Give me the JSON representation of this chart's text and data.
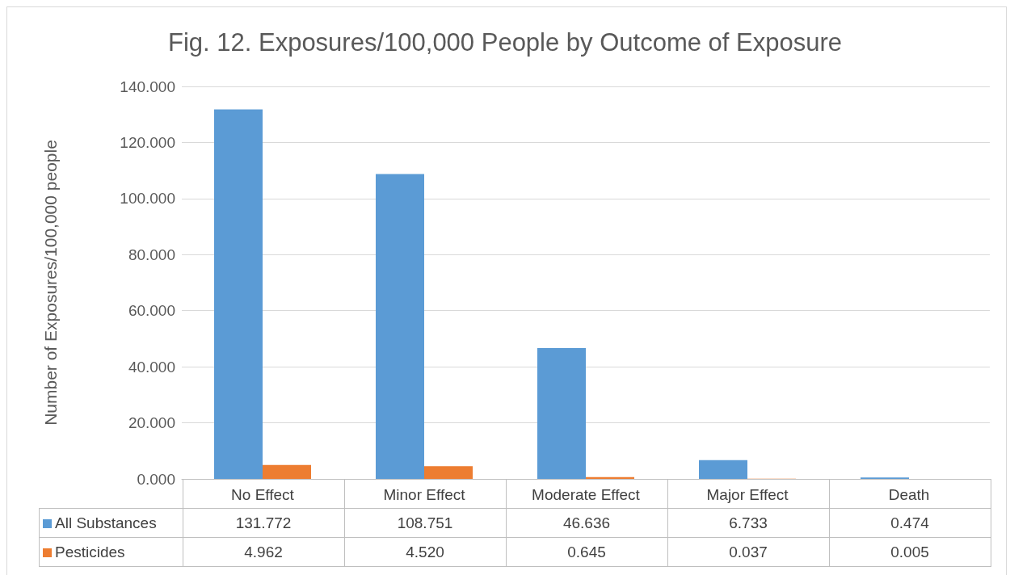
{
  "chart_data": {
    "type": "bar",
    "title": "Fig. 12. Exposures/100,000 People by Outcome of Exposure",
    "ylabel": "Number of Exposures/100,000 people",
    "categories": [
      "No Effect",
      "Minor Effect",
      "Moderate Effect",
      "Major Effect",
      "Death"
    ],
    "series": [
      {
        "name": "All Substances",
        "color": "#5b9bd5",
        "values": [
          131.772,
          108.751,
          46.636,
          6.733,
          0.474
        ],
        "value_labels": [
          "131.772",
          "108.751",
          "46.636",
          "6.733",
          "0.474"
        ]
      },
      {
        "name": "Pesticides",
        "color": "#ed7d31",
        "values": [
          4.962,
          4.52,
          0.645,
          0.037,
          0.005
        ],
        "value_labels": [
          "4.962",
          "4.520",
          "0.645",
          "0.037",
          "0.005"
        ]
      }
    ],
    "ylim": [
      0,
      140
    ],
    "yticks": [
      {
        "value": 0,
        "label": "0.000"
      },
      {
        "value": 20,
        "label": "20.000"
      },
      {
        "value": 40,
        "label": "40.000"
      },
      {
        "value": 60,
        "label": "60.000"
      },
      {
        "value": 80,
        "label": "80.000"
      },
      {
        "value": 100,
        "label": "100.000"
      },
      {
        "value": 120,
        "label": "120.000"
      },
      {
        "value": 140,
        "label": "140.000"
      }
    ],
    "grid": "y",
    "legend": "bottom"
  }
}
